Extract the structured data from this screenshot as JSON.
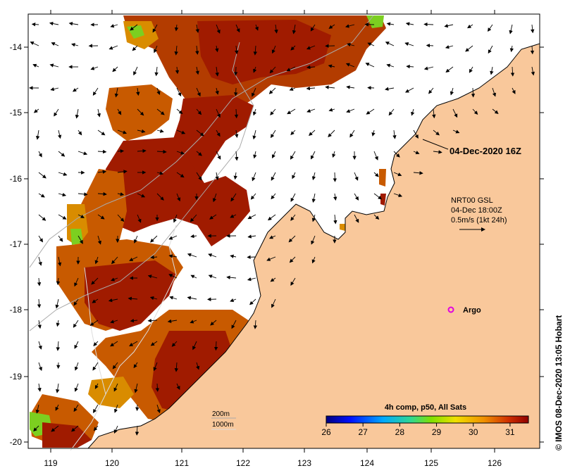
{
  "map": {
    "timestamp_label": "04-Dec-2020 16Z",
    "current_info": {
      "line1": "NRT00 GSL",
      "line2": "04-Dec 18:00Z",
      "line3": "0.5m/s (1kt 24h)"
    },
    "argo_label": "Argo",
    "isobath_labels": [
      "200m",
      "1000m"
    ],
    "credit": "© IMOS 08-Dec-2020 13:05 Hobart",
    "colorbar": {
      "title": "4h comp, p50, All Sats",
      "min": 26,
      "max": 31.5,
      "ticks": [
        "26",
        "27",
        "28",
        "29",
        "30",
        "31"
      ]
    },
    "x_ticks": [
      "119",
      "120",
      "121",
      "122",
      "123",
      "124",
      "125",
      "126"
    ],
    "y_ticks": [
      "-14",
      "-15",
      "-16",
      "-17",
      "-18",
      "-19",
      "-20"
    ],
    "colors": {
      "land": "#f9c89b",
      "sst_hot": "#a01b00",
      "sst_warm": "#c85a00",
      "sst_mid": "#d98c00",
      "sst_cool": "#7ccf20"
    }
  }
}
